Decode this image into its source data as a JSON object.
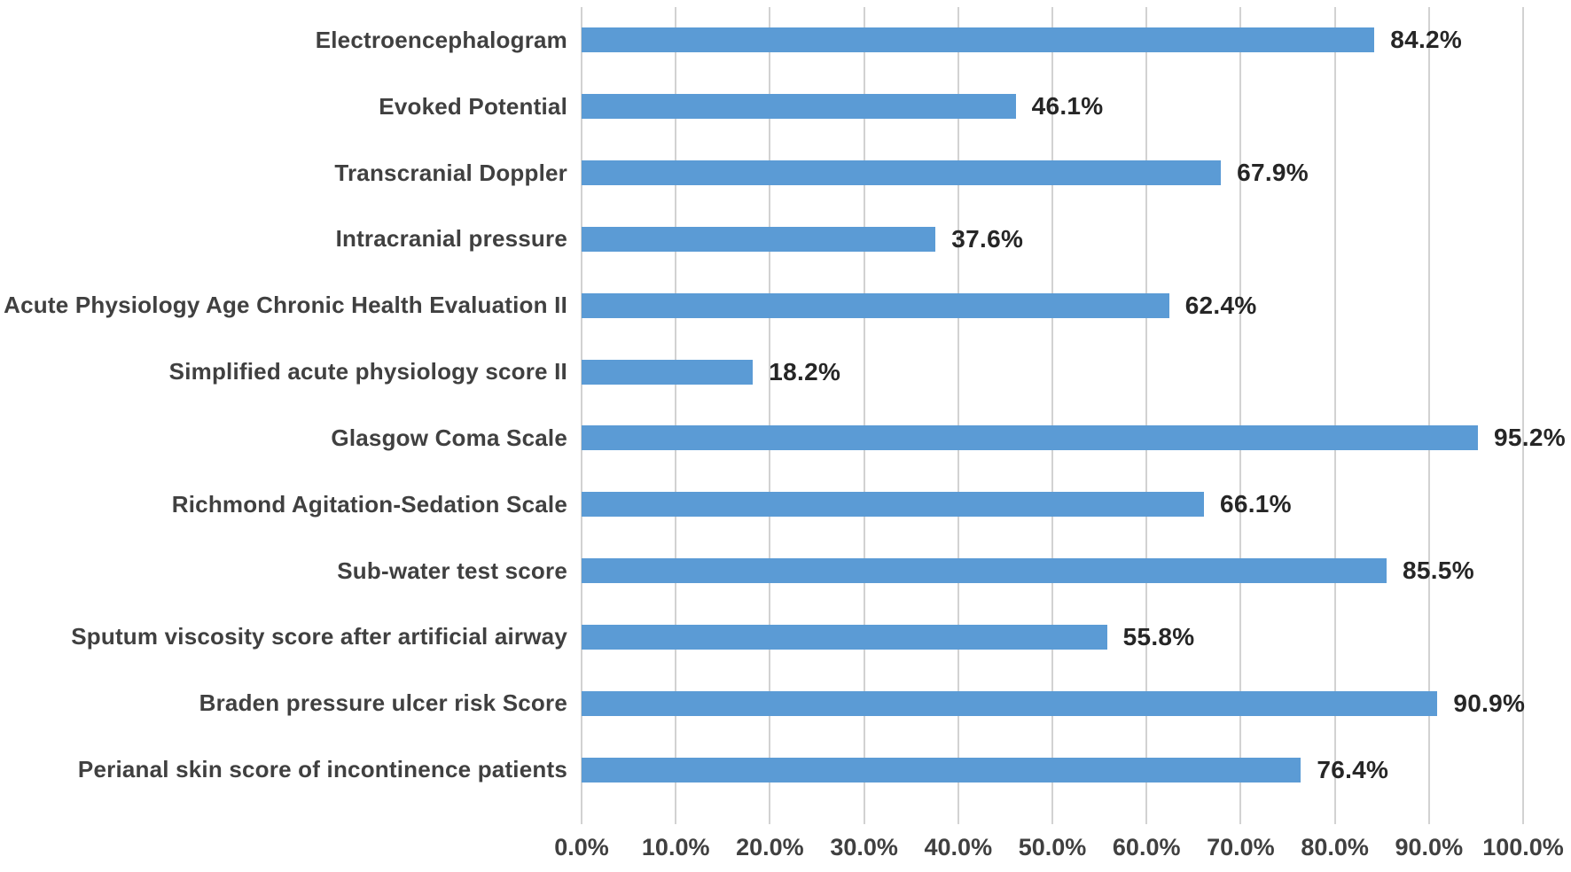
{
  "chart_data": {
    "type": "bar",
    "orientation": "horizontal",
    "title": "",
    "xlabel": "",
    "ylabel": "",
    "grid": true,
    "xlim": [
      0,
      100
    ],
    "categories": [
      "Electroencephalogram",
      "Evoked Potential",
      "Transcranial Doppler",
      "Intracranial pressure",
      "Acute Physiology Age Chronic Health Evaluation II",
      "Simplified acute physiology score II",
      "Glasgow Coma Scale",
      "Richmond Agitation-Sedation Scale",
      "Sub-water test score",
      "Sputum viscosity score after artificial airway",
      "Braden pressure ulcer risk Score",
      "Perianal skin score of incontinence patients"
    ],
    "values": [
      84.2,
      46.1,
      67.9,
      37.6,
      62.4,
      18.2,
      95.2,
      66.1,
      85.5,
      55.8,
      90.9,
      76.4
    ],
    "value_labels": [
      "84.2%",
      "46.1%",
      "67.9%",
      "37.6%",
      "62.4%",
      "18.2%",
      "95.2%",
      "66.1%",
      "85.5%",
      "55.8%",
      "90.9%",
      "76.4%"
    ],
    "x_tick_labels": [
      "0.0%",
      "10.0%",
      "20.0%",
      "30.0%",
      "40.0%",
      "50.0%",
      "60.0%",
      "70.0%",
      "80.0%",
      "90.0%",
      "100.0%"
    ],
    "x_tick_values": [
      0,
      10,
      20,
      30,
      40,
      50,
      60,
      70,
      80,
      90,
      100
    ],
    "colors": {
      "bar": "#5b9bd5",
      "gridline": "#d2d2d2",
      "category_label": "#404040",
      "value_label": "#262626",
      "axis_label": "#404040",
      "background": "#ffffff"
    }
  }
}
